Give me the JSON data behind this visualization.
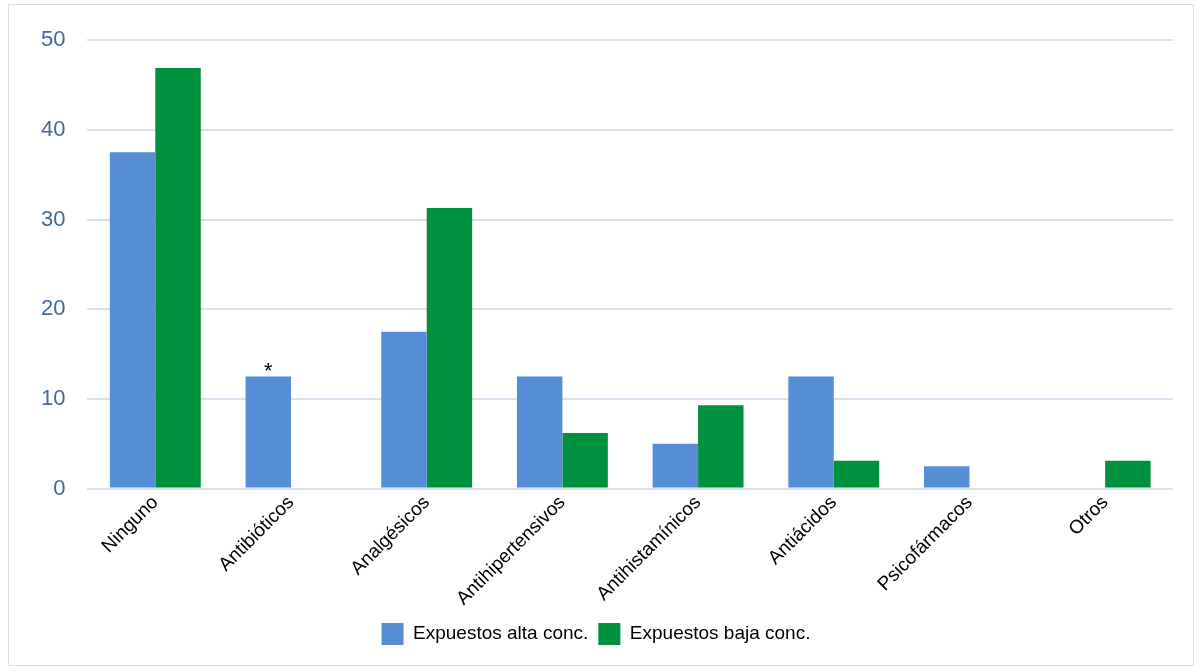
{
  "chart_data": {
    "type": "bar",
    "categories": [
      "Ninguno",
      "Antibióticos",
      "Analgésicos",
      "Antihipertensivos",
      "Antihistamínicos",
      "Antiácidos",
      "Psicofármacos",
      "Otros"
    ],
    "series": [
      {
        "name": "Expuestos alta conc.",
        "color": "#558ed5",
        "values": [
          37.5,
          12.5,
          17.5,
          12.5,
          5,
          12.5,
          2.5,
          0
        ]
      },
      {
        "name": "Expuestos baja conc.",
        "color": "#00913f",
        "values": [
          46.9,
          0,
          31.3,
          6.2,
          9.3,
          3.1,
          0,
          3.1
        ]
      }
    ],
    "ylim": [
      0,
      50
    ],
    "yticks": [
      0,
      10,
      20,
      30,
      40,
      50
    ],
    "grid": "y",
    "legend": "bottom",
    "annotations": [
      {
        "text": "*",
        "x": "Antibióticos",
        "y": 12.5
      }
    ]
  }
}
